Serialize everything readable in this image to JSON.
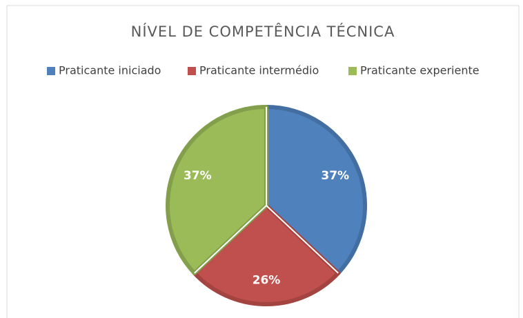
{
  "chart_data": {
    "type": "pie",
    "title": "NÍVEL DE COMPETÊNCIA TÉCNICA",
    "categories": [
      "Praticante iniciado",
      "Praticante intermédio",
      "Praticante experiente"
    ],
    "values": [
      37,
      26,
      37
    ],
    "value_labels": [
      "37%",
      "26%",
      "37%"
    ],
    "colors": [
      "#4f81bd",
      "#c0504d",
      "#9bbb59"
    ],
    "legend": "top"
  }
}
